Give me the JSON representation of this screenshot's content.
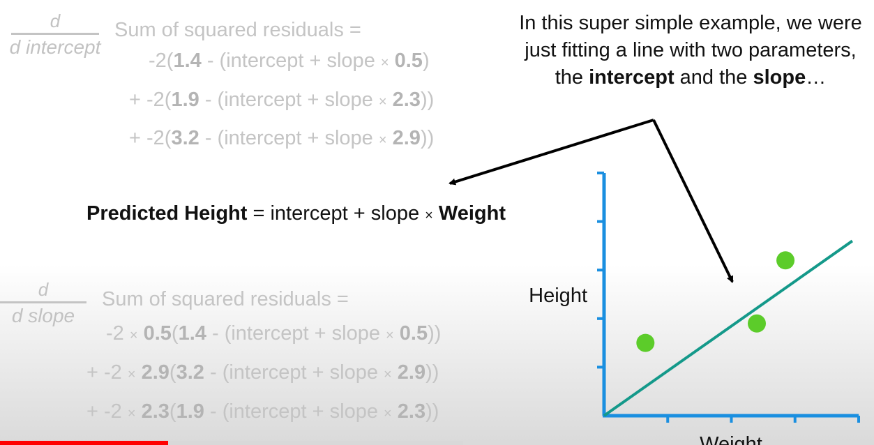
{
  "intercept_block": {
    "frac_num": "d",
    "frac_den": "d intercept",
    "lead": "Sum of squared residuals =",
    "terms": [
      {
        "prefix": "-2(",
        "obs": "1.4",
        "mid": " - (intercept + slope ",
        "times": "×",
        "x": "0.5",
        "close": ")"
      },
      {
        "prefix": "+ -2(",
        "obs": "1.9",
        "mid": " - (intercept + slope ",
        "times": "×",
        "x": "2.3",
        "close": "))"
      },
      {
        "prefix": "+ -2(",
        "obs": "3.2",
        "mid": " - (intercept + slope ",
        "times": "×",
        "x": "2.9",
        "close": "))"
      }
    ]
  },
  "slope_block": {
    "frac_num": "d",
    "frac_den": "d slope",
    "lead": "Sum of squared residuals =",
    "terms": [
      {
        "prefix": "-2 ",
        "times1": "×",
        "w": "0.5",
        "open": "(",
        "obs": "1.4",
        "mid": " - (intercept + slope ",
        "times2": "×",
        "x": "0.5",
        "close": "))"
      },
      {
        "prefix": "+ -2 ",
        "times1": "×",
        "w": "2.9",
        "open": "(",
        "obs": "3.2",
        "mid": " - (intercept + slope ",
        "times2": "×",
        "x": "2.9",
        "close": "))"
      },
      {
        "prefix": "+ -2 ",
        "times1": "×",
        "w": "2.3",
        "open": "(",
        "obs": "1.9",
        "mid": " - (intercept + slope ",
        "times2": "×",
        "x": "2.3",
        "close": "))"
      }
    ]
  },
  "equation": {
    "lhs": "Predicted Height",
    "eq": " = intercept + slope ",
    "times": "×",
    "rhs": " Weight"
  },
  "annotation": {
    "part1": "In this super simple example, we were just fitting a line with two parameters, the ",
    "intercept": "intercept",
    "and": " and the ",
    "slope": "slope",
    "ellipsis": "…"
  },
  "chart_data": {
    "type": "scatter",
    "title": "",
    "xlabel": "Weight",
    "ylabel": "Height",
    "xlim": [
      0,
      4
    ],
    "ylim": [
      0,
      5
    ],
    "xticks": [
      1,
      2,
      3,
      4
    ],
    "yticks": [
      1,
      2,
      3,
      4,
      5
    ],
    "points": [
      {
        "x": 0.65,
        "y": 1.5
      },
      {
        "x": 2.4,
        "y": 1.9
      },
      {
        "x": 2.85,
        "y": 3.2
      }
    ],
    "fit_line": {
      "x": [
        0,
        3.9
      ],
      "y": [
        0,
        3.6
      ]
    },
    "colors": {
      "axes": "#1a8fe0",
      "points": "#5ccc2a",
      "line": "#14998a"
    }
  },
  "arrows_color": "#000000",
  "progress": {
    "fraction": 0.363,
    "color": "#ff0000"
  }
}
